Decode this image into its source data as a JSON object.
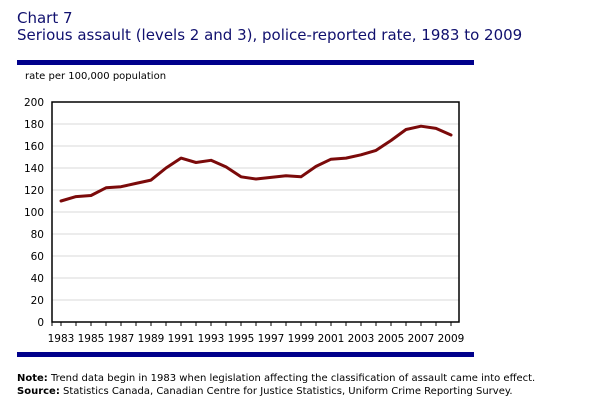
{
  "header": {
    "chart_number": "Chart 7",
    "title": "Serious assault (levels 2 and 3), police-reported rate, 1983 to 2009"
  },
  "footer": {
    "note_label": "Note:",
    "note_text": " Trend data begin in 1983 when legislation affecting the classification of assault came into effect.",
    "source_label": "Source:",
    "source_text": " Statistics Canada, Canadian Centre for Justice Statistics, Uniform Crime Reporting Survey."
  },
  "colors": {
    "title": "#10106e",
    "rule": "#00008b",
    "line": "#7b0a0a",
    "grid": "#d9d9d9",
    "axis": "#000000"
  },
  "chart_data": {
    "type": "line",
    "title": "Serious assault (levels 2 and 3), police-reported rate, 1983 to 2009",
    "xlabel": "",
    "ylabel": "rate per 100,000 population",
    "ylim": [
      0,
      200
    ],
    "yticks": [
      0,
      20,
      40,
      60,
      80,
      100,
      120,
      140,
      160,
      180,
      200
    ],
    "xlim": [
      1983,
      2009
    ],
    "xtick_labels": [
      "1983",
      "1985",
      "1987",
      "1989",
      "1991",
      "1993",
      "1995",
      "1997",
      "1999",
      "2001",
      "2003",
      "2005",
      "2007",
      "2009"
    ],
    "grid": "horizontal",
    "legend": "none",
    "x": [
      1983,
      1984,
      1985,
      1986,
      1987,
      1988,
      1989,
      1990,
      1991,
      1992,
      1993,
      1994,
      1995,
      1996,
      1997,
      1998,
      1999,
      2000,
      2001,
      2002,
      2003,
      2004,
      2005,
      2006,
      2007,
      2008,
      2009
    ],
    "series": [
      {
        "name": "Serious assault rate",
        "values": [
          110,
          114,
          115,
          122,
          123,
          126,
          129,
          140,
          149,
          145,
          147,
          141,
          132,
          130,
          131.5,
          133,
          132,
          141.5,
          148,
          149,
          152,
          156,
          165,
          175,
          178,
          176,
          170
        ]
      }
    ]
  }
}
